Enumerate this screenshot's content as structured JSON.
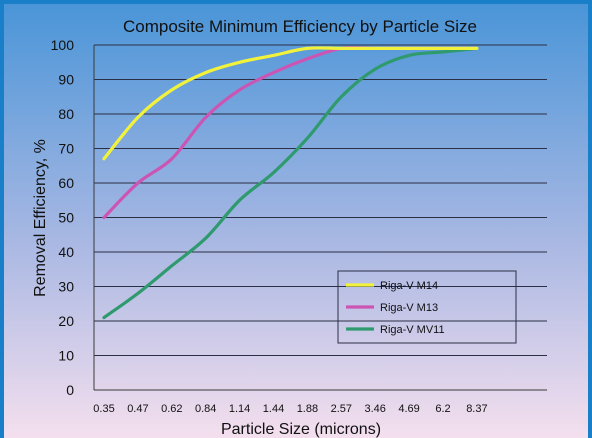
{
  "chart_data": {
    "type": "line",
    "title": "Composite Minimum Efficiency by Particle Size",
    "xlabel": "Particle Size (microns)",
    "ylabel": "Removal Efficiency, %",
    "categories": [
      "0.35",
      "0.47",
      "0.62",
      "0.84",
      "1.14",
      "1.44",
      "1.88",
      "2.57",
      "3.46",
      "4.69",
      "6.2",
      "8.37"
    ],
    "ylim": [
      0,
      100
    ],
    "yticks": [
      0,
      10,
      20,
      30,
      40,
      50,
      60,
      70,
      80,
      90,
      100
    ],
    "grid": true,
    "legend_position": "bottom-right",
    "series": [
      {
        "name": "Riga-V M14",
        "color": "#f2f23a",
        "values": [
          67,
          79,
          87,
          92,
          95,
          97,
          99,
          99,
          99,
          99,
          99,
          99
        ]
      },
      {
        "name": "Riga-V M13",
        "color": "#cc55b4",
        "values": [
          50,
          60,
          67,
          79,
          87,
          92,
          96,
          99,
          99,
          99,
          99,
          99
        ]
      },
      {
        "name": "Riga-V MV11",
        "color": "#2f9a6e",
        "values": [
          21,
          28,
          36,
          44,
          55,
          63,
          73,
          85,
          93,
          97,
          98,
          99
        ]
      }
    ]
  }
}
